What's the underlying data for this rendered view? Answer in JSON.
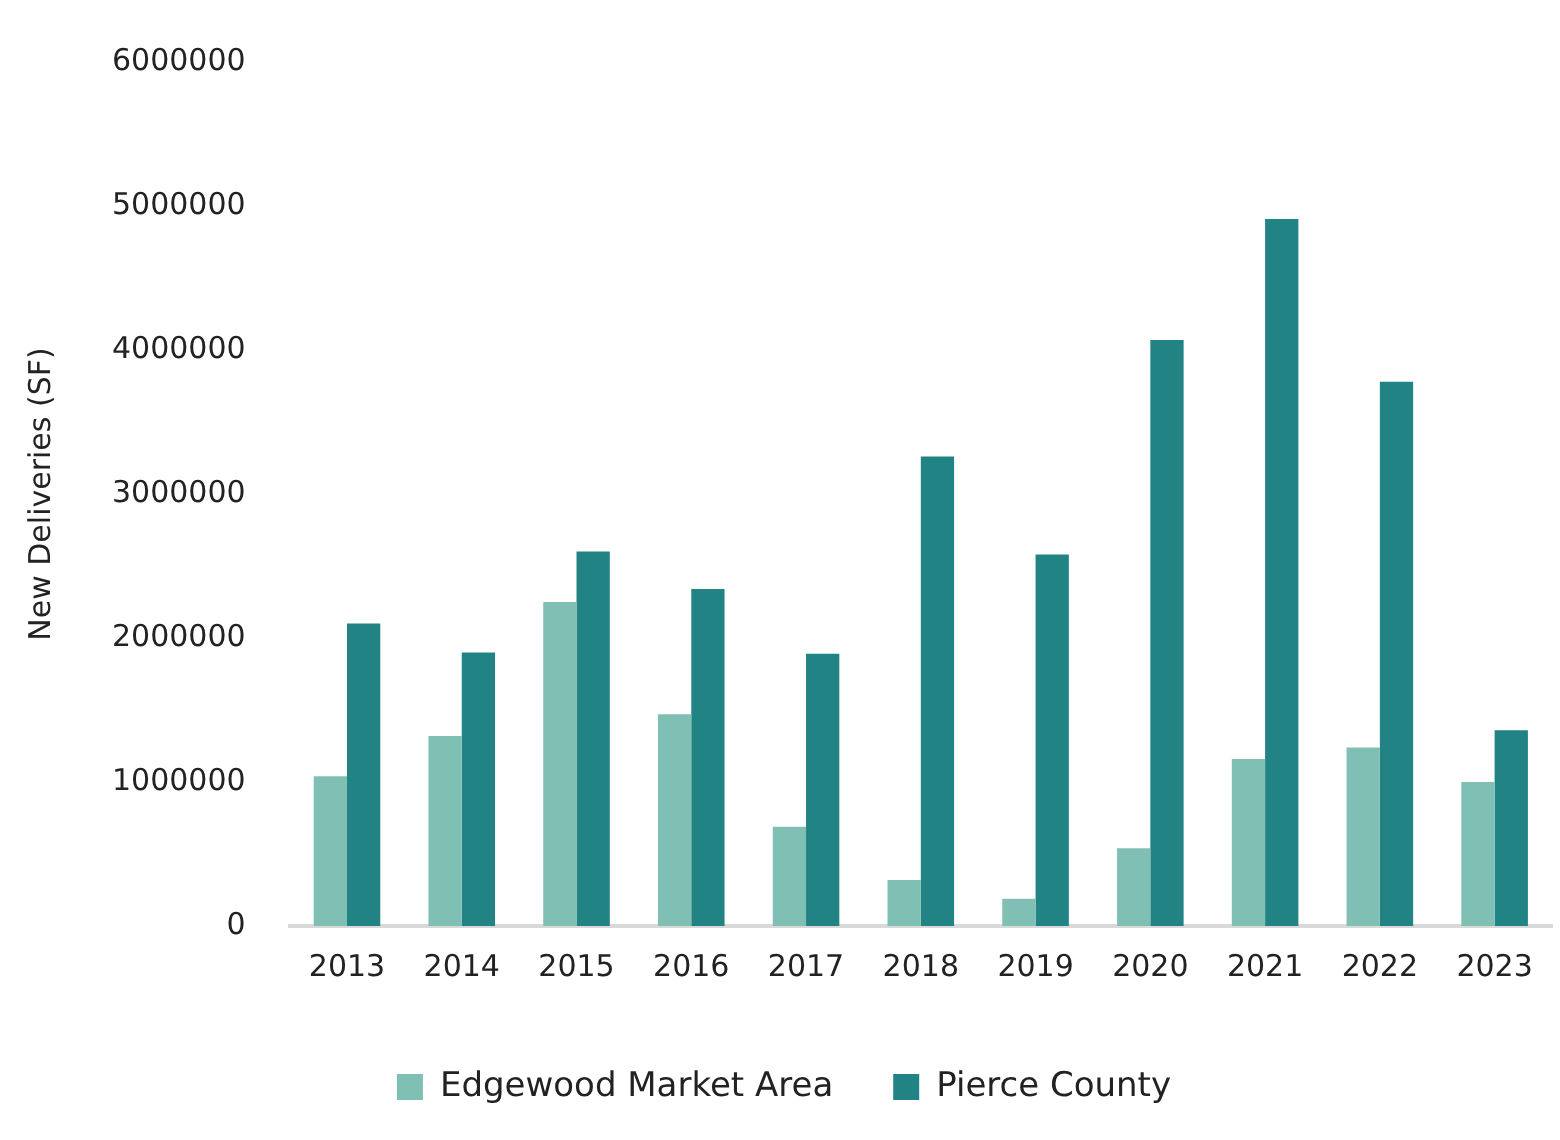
{
  "chart_data": {
    "type": "bar",
    "ylabel": "New Deliveries (SF)",
    "categories": [
      "2013",
      "2014",
      "2015",
      "2016",
      "2017",
      "2018",
      "2019",
      "2020",
      "2021",
      "2022",
      "2023"
    ],
    "series": [
      {
        "name": "Edgewood Market Area",
        "color": "#80bfb4",
        "values": [
          1040000,
          1320000,
          2250000,
          1470000,
          690000,
          320000,
          190000,
          540000,
          1160000,
          1240000,
          1000000
        ]
      },
      {
        "name": "Pierce County",
        "color": "#218383",
        "values": [
          2100000,
          1900000,
          2600000,
          2340000,
          1890000,
          3260000,
          2580000,
          4070000,
          4910000,
          3780000,
          1360000
        ]
      }
    ],
    "ylim": [
      0,
      6000000
    ],
    "yticks": [
      0,
      1000000,
      2000000,
      3000000,
      4000000,
      5000000,
      6000000
    ],
    "grid": false,
    "legend": "bottom"
  }
}
